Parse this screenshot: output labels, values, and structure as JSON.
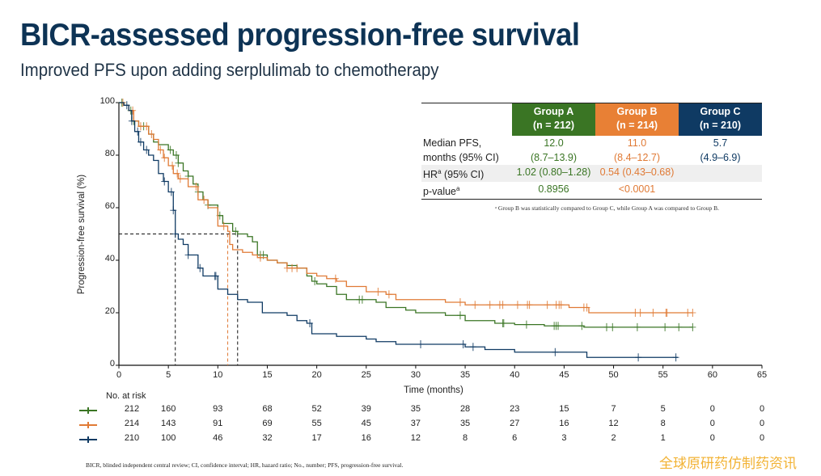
{
  "header": {
    "title": "BICR-assessed progression-free survival",
    "subtitle": "Improved PFS upon adding serplulimab to chemotherapy"
  },
  "colors": {
    "group_a": "#3a7524",
    "group_b": "#e07a35",
    "group_c": "#0f3a63",
    "title": "#0d3355"
  },
  "summary_table": {
    "columns": [
      {
        "name": "Group A",
        "n": "(n = 212)"
      },
      {
        "name": "Group B",
        "n": "(n = 214)"
      },
      {
        "name": "Group C",
        "n": "(n = 210)"
      }
    ],
    "rows": {
      "median_label_1": "Median PFS,",
      "median_label_2": "months (95% CI)",
      "median": [
        "12.0",
        "11.0",
        "5.7"
      ],
      "median_ci": [
        "(8.7–13.9)",
        "(8.4–12.7)",
        "(4.9–6.9)"
      ],
      "hr_label": "HR",
      "hr_sup": "a",
      "hr_label_rest": " (95% CI)",
      "hr": [
        "1.02 (0.80–1.28)",
        "0.54 (0.43–0.68)",
        ""
      ],
      "p_label": "p-value",
      "p_sup": "a",
      "p": [
        "0.8956",
        "<0.0001",
        ""
      ]
    },
    "footnote": "ᵃ Group B was statistically compared to Group C, while Group A was compared to Group B."
  },
  "chart_data": {
    "type": "line",
    "subtype": "kaplan-meier",
    "xlabel": "Time (months)",
    "ylabel": "Progression-free survival (%)",
    "xlim": [
      0,
      65
    ],
    "ylim": [
      0,
      100
    ],
    "xticks": [
      0,
      5,
      10,
      15,
      20,
      25,
      30,
      35,
      40,
      45,
      50,
      55,
      60,
      65
    ],
    "yticks": [
      0,
      20,
      40,
      60,
      80,
      100
    ],
    "median_reference": {
      "y": 50,
      "x": [
        5.7,
        11.0,
        12.0
      ]
    },
    "series": [
      {
        "name": "Group A",
        "color_key": "group_a",
        "points": [
          [
            0,
            100
          ],
          [
            0.5,
            99
          ],
          [
            1,
            97
          ],
          [
            1.3,
            93
          ],
          [
            2,
            91
          ],
          [
            3,
            88
          ],
          [
            3.5,
            85
          ],
          [
            4,
            84
          ],
          [
            5,
            82
          ],
          [
            5.5,
            80
          ],
          [
            6,
            77
          ],
          [
            6.5,
            74
          ],
          [
            7,
            72
          ],
          [
            7.5,
            69
          ],
          [
            8,
            66
          ],
          [
            8.5,
            63
          ],
          [
            9,
            61
          ],
          [
            10,
            57
          ],
          [
            10.5,
            54
          ],
          [
            11.5,
            51
          ],
          [
            12,
            50
          ],
          [
            13,
            49
          ],
          [
            13.5,
            47
          ],
          [
            14,
            42
          ],
          [
            15,
            40
          ],
          [
            16,
            39
          ],
          [
            17,
            38
          ],
          [
            18,
            37
          ],
          [
            19,
            34
          ],
          [
            19.5,
            32
          ],
          [
            20,
            31
          ],
          [
            21,
            30
          ],
          [
            22,
            27
          ],
          [
            23,
            25
          ],
          [
            25,
            25
          ],
          [
            26,
            24
          ],
          [
            27,
            22
          ],
          [
            29,
            21
          ],
          [
            30,
            20
          ],
          [
            33,
            19
          ],
          [
            35,
            17
          ],
          [
            38,
            16
          ],
          [
            40,
            15.5
          ],
          [
            43,
            15
          ],
          [
            45,
            15
          ],
          [
            47,
            14.5
          ],
          [
            58,
            14.5
          ]
        ],
        "censor_x": [
          0.3,
          1.2,
          1.5,
          2.5,
          5.2,
          5.8,
          6.0,
          7.0,
          8.0,
          9.0,
          10.2,
          11.8,
          14.3,
          14.6,
          19.8,
          24.3,
          24.6,
          34.5,
          38.8,
          38.9,
          41.2,
          44.0,
          44.2,
          44.4,
          46.8,
          49.3,
          49.9,
          52.4,
          55.2,
          56.6,
          58.0
        ]
      },
      {
        "name": "Group B",
        "color_key": "group_b",
        "points": [
          [
            0,
            100
          ],
          [
            0.5,
            99
          ],
          [
            1,
            97
          ],
          [
            1.5,
            93
          ],
          [
            2,
            91
          ],
          [
            3,
            88
          ],
          [
            3.5,
            86
          ],
          [
            4,
            82
          ],
          [
            4.5,
            79
          ],
          [
            5,
            76
          ],
          [
            5.5,
            73
          ],
          [
            6,
            71
          ],
          [
            7,
            68
          ],
          [
            8,
            63
          ],
          [
            9,
            60
          ],
          [
            10,
            53
          ],
          [
            11,
            51
          ],
          [
            11.2,
            46
          ],
          [
            11.5,
            44
          ],
          [
            12.5,
            43
          ],
          [
            13.5,
            42
          ],
          [
            14,
            41
          ],
          [
            15,
            40
          ],
          [
            16,
            39
          ],
          [
            17,
            37
          ],
          [
            18,
            37
          ],
          [
            19,
            35
          ],
          [
            20,
            34
          ],
          [
            21,
            33
          ],
          [
            22,
            32
          ],
          [
            23,
            30
          ],
          [
            25,
            28
          ],
          [
            27,
            27
          ],
          [
            28,
            25
          ],
          [
            30,
            25
          ],
          [
            33,
            24
          ],
          [
            35,
            23
          ],
          [
            38,
            23
          ],
          [
            42,
            23
          ],
          [
            45,
            23
          ],
          [
            45.5,
            22
          ],
          [
            47,
            22
          ],
          [
            47.5,
            20
          ],
          [
            58,
            20
          ]
        ],
        "censor_x": [
          0.4,
          1.4,
          2.2,
          2.8,
          3.3,
          4.2,
          4.6,
          5.4,
          5.9,
          6.2,
          7.8,
          8.6,
          10.6,
          14.3,
          17.0,
          17.5,
          18.0,
          21.9,
          26.2,
          27.3,
          34.5,
          36.0,
          37.5,
          38.5,
          38.8,
          40.3,
          41.3,
          41.5,
          43.3,
          44.2,
          44.5,
          44.7,
          47.0,
          47.3,
          52.2,
          52.7,
          54.0,
          55.3,
          55.4,
          57.5,
          58.0
        ]
      },
      {
        "name": "Group C",
        "color_key": "group_c",
        "points": [
          [
            0,
            100
          ],
          [
            0.5,
            99
          ],
          [
            1,
            97
          ],
          [
            1.3,
            93
          ],
          [
            1.6,
            89
          ],
          [
            2,
            85
          ],
          [
            2.5,
            82
          ],
          [
            3,
            80
          ],
          [
            3.5,
            78
          ],
          [
            4,
            73
          ],
          [
            4.5,
            70
          ],
          [
            5,
            66
          ],
          [
            5.5,
            59
          ],
          [
            5.7,
            50
          ],
          [
            6,
            48
          ],
          [
            6.5,
            46
          ],
          [
            7,
            42
          ],
          [
            8,
            37
          ],
          [
            8.5,
            34
          ],
          [
            9.5,
            34
          ],
          [
            10,
            29
          ],
          [
            11,
            27
          ],
          [
            12,
            25
          ],
          [
            13,
            24
          ],
          [
            14,
            24
          ],
          [
            14.5,
            20
          ],
          [
            17,
            19
          ],
          [
            18,
            17
          ],
          [
            19,
            16
          ],
          [
            19.5,
            12
          ],
          [
            20,
            12
          ],
          [
            22,
            11
          ],
          [
            25,
            10
          ],
          [
            26,
            9
          ],
          [
            28,
            8
          ],
          [
            30,
            8
          ],
          [
            35,
            7
          ],
          [
            37,
            6
          ],
          [
            40,
            5
          ],
          [
            47,
            5
          ],
          [
            47.3,
            3
          ],
          [
            56.5,
            3
          ]
        ],
        "censor_x": [
          0.8,
          1.3,
          1.9,
          2.2,
          2.8,
          4.6,
          5.3,
          5.5,
          5.7,
          7.0,
          8.2,
          9.7,
          9.8,
          19.3,
          30.5,
          34.8,
          35.8,
          44.1,
          52.5,
          56.3
        ]
      }
    ]
  },
  "risk_table": {
    "title": "No. at risk",
    "times": [
      0,
      5,
      10,
      15,
      20,
      25,
      30,
      35,
      40,
      45,
      50,
      55,
      60,
      65
    ],
    "rows": [
      {
        "group": "Group A",
        "color_key": "group_a",
        "values": [
          "212",
          "160",
          "93",
          "68",
          "52",
          "39",
          "35",
          "28",
          "23",
          "15",
          "7",
          "5",
          "0",
          "0"
        ]
      },
      {
        "group": "Group B",
        "color_key": "group_b",
        "values": [
          "214",
          "143",
          "91",
          "69",
          "55",
          "45",
          "37",
          "35",
          "27",
          "16",
          "12",
          "8",
          "0",
          "0"
        ]
      },
      {
        "group": "Group C",
        "color_key": "group_c",
        "values": [
          "210",
          "100",
          "46",
          "32",
          "17",
          "16",
          "12",
          "8",
          "6",
          "3",
          "2",
          "1",
          "0",
          "0"
        ]
      }
    ]
  },
  "abbreviations": "BICR, blinded independent central review;  CI, confidence interval; HR, hazard ratio; No., number; PFS, progression-free survival.",
  "watermark": "全球原研药仿制药资讯"
}
